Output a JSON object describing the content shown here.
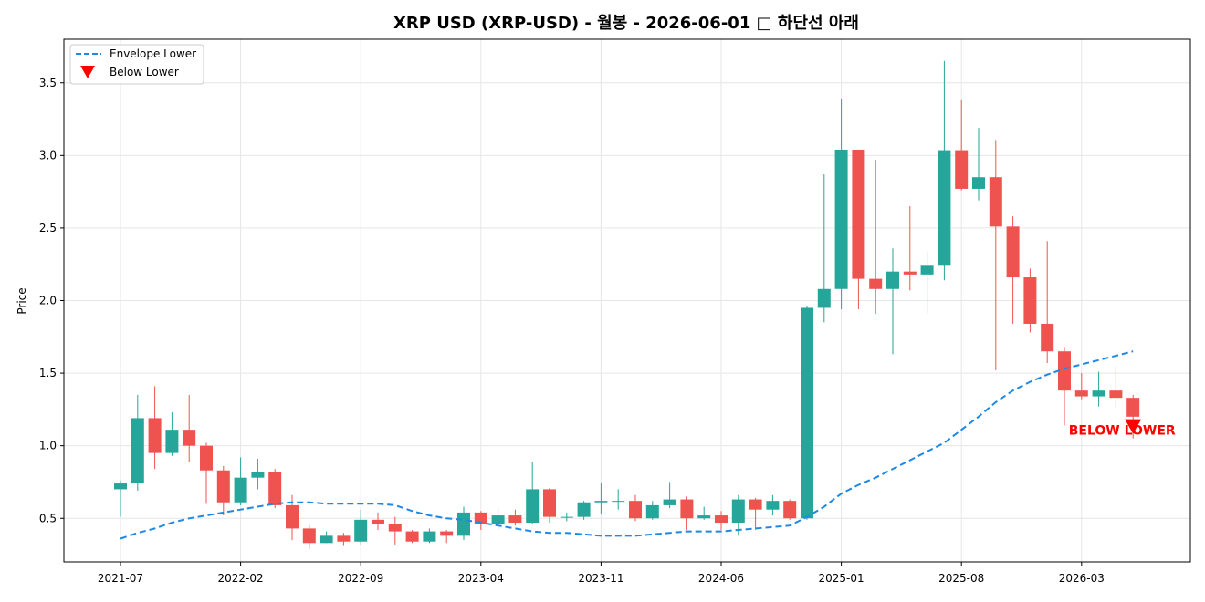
{
  "chart_data": {
    "type": "candlestick",
    "title": "XRP USD (XRP-USD) - 월봉 - 2026-06-01 □ 하단선 아래",
    "xlabel": "",
    "ylabel": "Price",
    "ylim": [
      0.2,
      3.8
    ],
    "y_ticks": [
      0.5,
      1.0,
      1.5,
      2.0,
      2.5,
      3.0,
      3.5
    ],
    "y_tick_labels": [
      "0.5",
      "1.0",
      "1.5",
      "2.0",
      "2.5",
      "3.0",
      "3.5"
    ],
    "x_tick_labels": [
      "2021-07",
      "2022-02",
      "2022-09",
      "2023-04",
      "2023-11",
      "2024-06",
      "2025-01",
      "2025-08",
      "2026-03"
    ],
    "grid": true,
    "colors": {
      "up": "#26a69a",
      "down": "#ef5350",
      "envelope": "#1e88e5",
      "marker": "#ff0000"
    },
    "dates": [
      "2021-07",
      "2021-08",
      "2021-09",
      "2021-10",
      "2021-11",
      "2021-12",
      "2022-01",
      "2022-02",
      "2022-03",
      "2022-04",
      "2022-05",
      "2022-06",
      "2022-07",
      "2022-08",
      "2022-09",
      "2022-10",
      "2022-11",
      "2022-12",
      "2023-01",
      "2023-02",
      "2023-03",
      "2023-04",
      "2023-05",
      "2023-06",
      "2023-07",
      "2023-08",
      "2023-09",
      "2023-10",
      "2023-11",
      "2023-12",
      "2024-01",
      "2024-02",
      "2024-03",
      "2024-04",
      "2024-05",
      "2024-06",
      "2024-07",
      "2024-08",
      "2024-09",
      "2024-10",
      "2024-11",
      "2024-12",
      "2025-01",
      "2025-02",
      "2025-03",
      "2025-04",
      "2025-05",
      "2025-06",
      "2025-07",
      "2025-08",
      "2025-09",
      "2025-10",
      "2025-11",
      "2025-12",
      "2026-01",
      "2026-02",
      "2026-03",
      "2026-04",
      "2026-05",
      "2026-06"
    ],
    "open": [
      0.7,
      0.74,
      1.19,
      0.95,
      1.11,
      1.0,
      0.83,
      0.61,
      0.78,
      0.82,
      0.59,
      0.43,
      0.33,
      0.38,
      0.34,
      0.49,
      0.46,
      0.41,
      0.34,
      0.41,
      0.38,
      0.54,
      0.46,
      0.52,
      0.47,
      0.7,
      0.51,
      0.51,
      0.61,
      0.62,
      0.62,
      0.5,
      0.59,
      0.63,
      0.5,
      0.52,
      0.47,
      0.63,
      0.56,
      0.62,
      0.5,
      1.95,
      2.08,
      3.04,
      2.15,
      2.08,
      2.2,
      2.18,
      2.24,
      3.03,
      2.77,
      2.85,
      2.51,
      2.16,
      1.84,
      1.65,
      1.38,
      1.34,
      1.38,
      1.33
    ],
    "close": [
      0.74,
      1.19,
      0.95,
      1.11,
      1.0,
      0.83,
      0.61,
      0.78,
      0.82,
      0.59,
      0.43,
      0.33,
      0.38,
      0.34,
      0.49,
      0.46,
      0.41,
      0.34,
      0.41,
      0.38,
      0.54,
      0.46,
      0.52,
      0.47,
      0.7,
      0.51,
      0.51,
      0.61,
      0.62,
      0.62,
      0.5,
      0.59,
      0.63,
      0.5,
      0.52,
      0.47,
      0.63,
      0.56,
      0.62,
      0.5,
      1.95,
      2.08,
      3.04,
      2.15,
      2.08,
      2.2,
      2.18,
      2.24,
      3.03,
      2.77,
      2.85,
      2.51,
      2.16,
      1.84,
      1.65,
      1.38,
      1.34,
      1.38,
      1.33,
      1.2
    ],
    "high": [
      0.76,
      1.35,
      1.41,
      1.23,
      1.35,
      1.02,
      0.86,
      0.92,
      0.91,
      0.84,
      0.66,
      0.45,
      0.41,
      0.4,
      0.56,
      0.54,
      0.51,
      0.42,
      0.43,
      0.42,
      0.58,
      0.55,
      0.57,
      0.56,
      0.89,
      0.71,
      0.54,
      0.62,
      0.74,
      0.7,
      0.66,
      0.62,
      0.75,
      0.65,
      0.58,
      0.55,
      0.66,
      0.64,
      0.66,
      0.63,
      1.96,
      2.87,
      3.39,
      3.04,
      2.97,
      2.36,
      2.65,
      2.34,
      3.65,
      3.38,
      3.19,
      3.1,
      2.58,
      2.22,
      2.41,
      1.68,
      1.5,
      1.51,
      1.55,
      1.35
    ],
    "low": [
      0.51,
      0.69,
      0.84,
      0.93,
      0.89,
      0.6,
      0.52,
      0.59,
      0.7,
      0.57,
      0.35,
      0.29,
      0.33,
      0.31,
      0.32,
      0.42,
      0.32,
      0.33,
      0.33,
      0.33,
      0.35,
      0.42,
      0.42,
      0.45,
      0.46,
      0.47,
      0.48,
      0.49,
      0.53,
      0.56,
      0.48,
      0.49,
      0.57,
      0.42,
      0.49,
      0.42,
      0.38,
      0.42,
      0.52,
      0.49,
      0.49,
      1.85,
      1.94,
      1.94,
      1.91,
      1.63,
      2.07,
      1.91,
      2.14,
      2.76,
      2.69,
      1.52,
      1.84,
      1.78,
      1.57,
      1.14,
      1.32,
      1.27,
      1.26,
      1.05
    ],
    "series": [
      {
        "name": "Envelope Lower",
        "values": [
          0.36,
          0.4,
          0.43,
          0.47,
          0.5,
          0.52,
          0.54,
          0.56,
          0.58,
          0.6,
          0.61,
          0.61,
          0.6,
          0.6,
          0.6,
          0.6,
          0.59,
          0.55,
          0.52,
          0.5,
          0.49,
          0.47,
          0.45,
          0.43,
          0.41,
          0.4,
          0.4,
          0.39,
          0.38,
          0.38,
          0.38,
          0.39,
          0.4,
          0.41,
          0.41,
          0.41,
          0.42,
          0.43,
          0.44,
          0.45,
          0.51,
          0.58,
          0.67,
          0.73,
          0.78,
          0.84,
          0.9,
          0.96,
          1.02,
          1.11,
          1.2,
          1.3,
          1.38,
          1.44,
          1.49,
          1.53,
          1.56,
          1.59,
          1.62,
          1.65
        ]
      }
    ],
    "signal": {
      "name": "Below Lower",
      "label": "BELOW LOWER",
      "date": "2026-06",
      "value": 1.12
    }
  }
}
